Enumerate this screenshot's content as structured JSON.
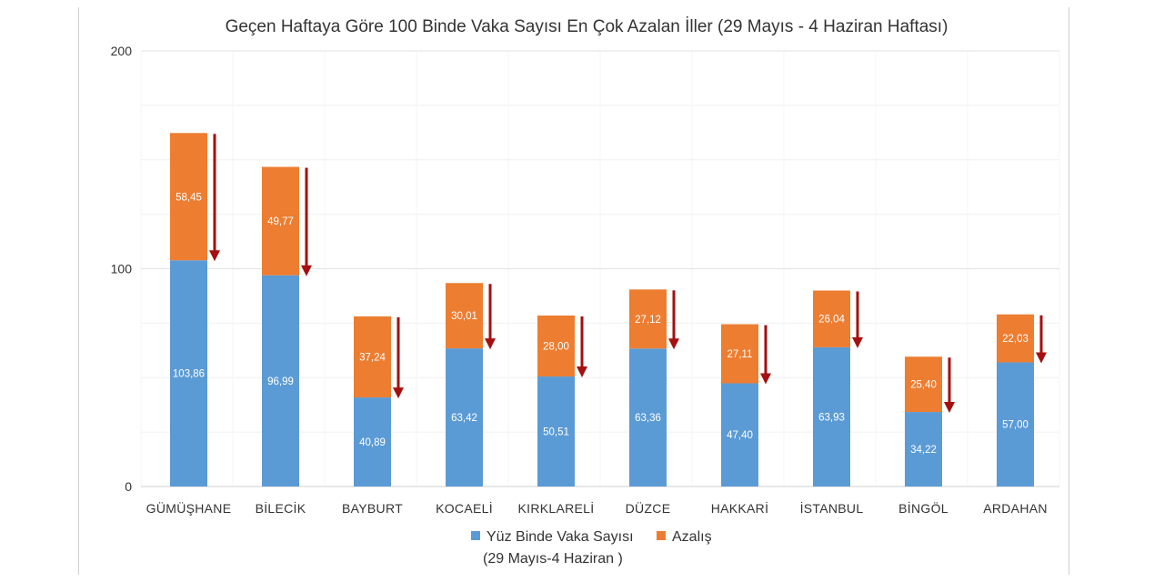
{
  "chart_data": {
    "type": "bar",
    "stacked": true,
    "title": "Geçen Haftaya Göre 100 Binde Vaka Sayısı En Çok Azalan İller (29 Mayıs - 4 Haziran Haftası)",
    "categories": [
      "GÜMÜŞHANE",
      "BİLECİK",
      "BAYBURT",
      "KOCAELİ",
      "KIRKLARELİ",
      "DÜZCE",
      "HAKKARİ",
      "İSTANBUL",
      "BİNGÖL",
      "ARDAHAN"
    ],
    "series": [
      {
        "name": "Yüz Binde Vaka Sayısı",
        "name_line2": "(29 Mayıs-4 Haziran )",
        "color": "#5b9bd5",
        "values": [
          103.86,
          96.99,
          40.89,
          63.42,
          50.51,
          63.36,
          47.4,
          63.93,
          34.22,
          57.0
        ],
        "labels": [
          "103,86",
          "96,99",
          "40,89",
          "63,42",
          "50,51",
          "63,36",
          "47,40",
          "63,93",
          "34,22",
          "57,00"
        ]
      },
      {
        "name": "Azalış",
        "color": "#ed7d31",
        "values": [
          58.45,
          49.77,
          37.24,
          30.01,
          28.0,
          27.12,
          27.11,
          26.04,
          25.4,
          22.03
        ],
        "labels": [
          "58,45",
          "49,77",
          "37,24",
          "30,01",
          "28,00",
          "27,12",
          "27,11",
          "26,04",
          "25,40",
          "22,03"
        ]
      }
    ],
    "ylim": [
      0,
      200
    ],
    "yticks": [
      "0",
      "100",
      "200"
    ],
    "ytick_values": [
      0,
      100,
      200
    ],
    "arrow_color": "#a50f0f",
    "grid": true,
    "legend_position": "bottom"
  }
}
